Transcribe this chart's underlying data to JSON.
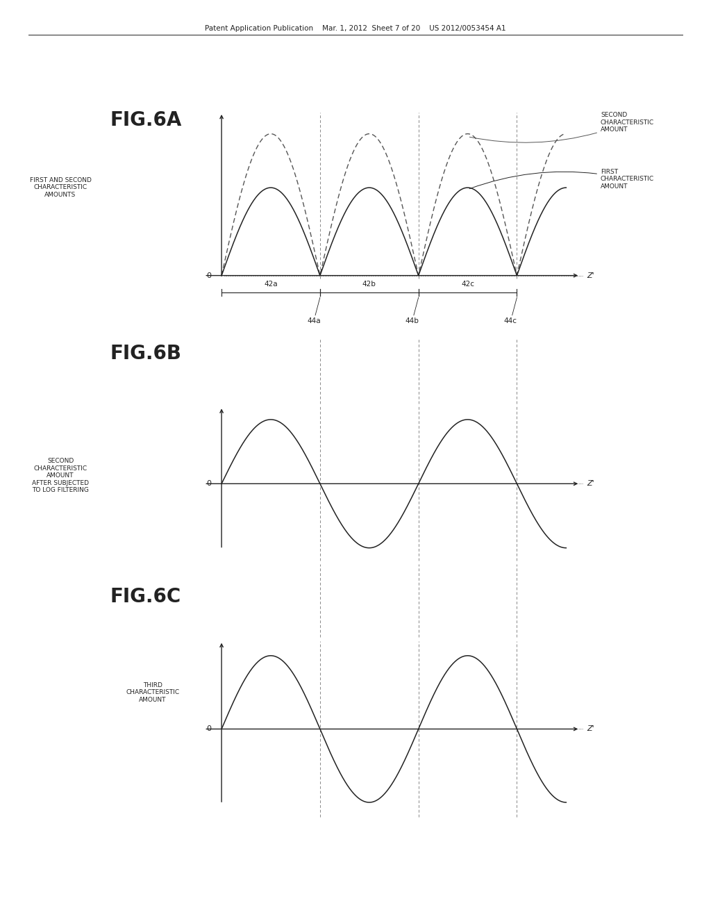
{
  "bg_color": "#ffffff",
  "header_text": "Patent Application Publication    Mar. 1, 2012  Sheet 7 of 20    US 2012/0053454 A1",
  "fig6a_label": "FIG.6A",
  "fig6b_label": "FIG.6B",
  "fig6c_label": "FIG.6C",
  "ylabel_6a": "FIRST AND SECOND\nCHARACTERISTIC\nAMOUNTS",
  "ylabel_6b": "SECOND\nCHARACTERISTIC\nAMOUNT\nAFTER SUBJECTED\nTO LOG FILTERING",
  "ylabel_6c": "THIRD\nCHARACTERISTIC\nAMOUNT",
  "second_label": "SECOND\nCHARACTERISTIC\nAMOUNT",
  "first_label": "FIRST\nCHARACTERISTIC\nAMOUNT",
  "bracket_labels_top": [
    "42a",
    "42b",
    "42c"
  ],
  "bracket_labels_bottom": [
    "44a",
    "44b",
    "44c"
  ],
  "line_color": "#222222",
  "dashed_color": "#555555",
  "vdash_color": "#888888",
  "dotted_color": "#555555",
  "text_color": "#222222",
  "fig_label_fontsize": 20,
  "axis_label_fontsize": 6.5,
  "annotation_fontsize": 6.5,
  "bracket_fontsize": 7.5
}
